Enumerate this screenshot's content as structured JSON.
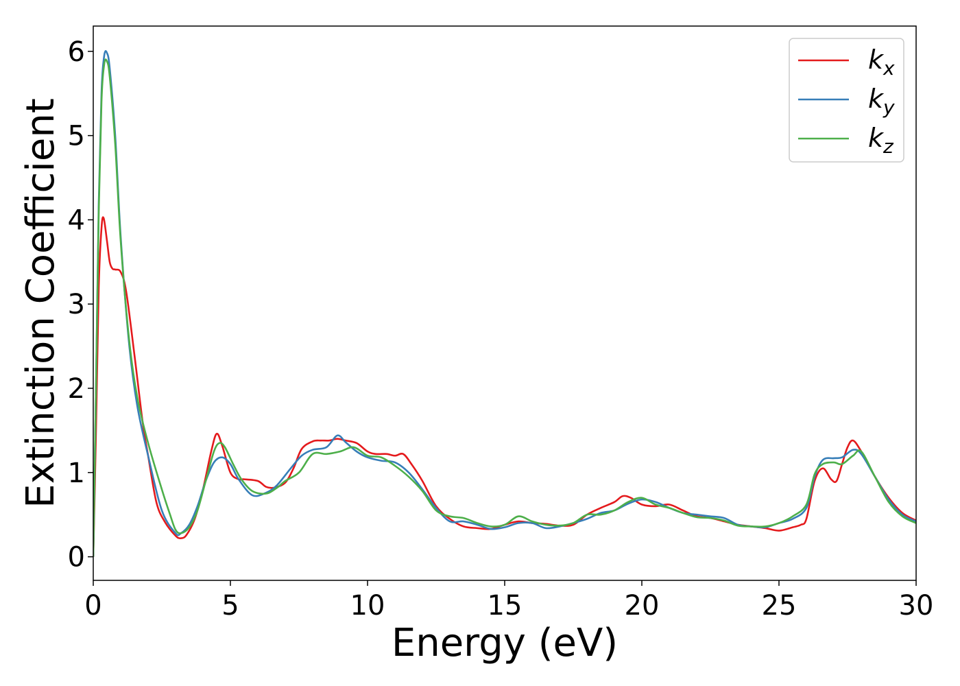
{
  "chart_data": {
    "type": "line",
    "title": "",
    "xlabel": "Energy (eV)",
    "ylabel": "Extinction Coefficient",
    "xlim": [
      0,
      30
    ],
    "ylim": [
      -0.28,
      6.3
    ],
    "xticks": [
      0,
      5,
      10,
      15,
      20,
      25,
      30
    ],
    "yticks": [
      0,
      1,
      2,
      3,
      4,
      5,
      6
    ],
    "grid": false,
    "legend_position": "upper right",
    "series": [
      {
        "name": "k",
        "subscript": "x",
        "color": "#e41a1c",
        "x": [
          0,
          0.1,
          0.2,
          0.3,
          0.38,
          0.5,
          0.6,
          0.7,
          0.8,
          1.0,
          1.2,
          1.5,
          1.8,
          2.0,
          2.3,
          2.6,
          3.0,
          3.2,
          3.4,
          3.7,
          4.0,
          4.3,
          4.5,
          4.7,
          5.0,
          5.3,
          5.5,
          6.0,
          6.3,
          6.6,
          7.0,
          7.3,
          7.6,
          8.0,
          8.3,
          8.6,
          8.9,
          9.2,
          9.6,
          10.0,
          10.3,
          10.7,
          11.0,
          11.3,
          11.6,
          12.0,
          12.5,
          13.0,
          13.5,
          14.0,
          14.5,
          15.0,
          15.5,
          16.0,
          16.5,
          17.0,
          17.5,
          18.0,
          18.5,
          19.0,
          19.3,
          19.6,
          20.0,
          20.5,
          21.0,
          21.5,
          22.0,
          22.5,
          23.0,
          23.5,
          24.0,
          24.5,
          25.0,
          25.5,
          25.8,
          26.0,
          26.3,
          26.6,
          26.9,
          27.1,
          27.3,
          27.5,
          27.7,
          28.0,
          28.5,
          29.0,
          29.5,
          30.0
        ],
        "y": [
          0.0,
          1.5,
          3.2,
          3.9,
          4.02,
          3.75,
          3.5,
          3.42,
          3.41,
          3.38,
          3.15,
          2.4,
          1.6,
          1.2,
          0.65,
          0.42,
          0.25,
          0.22,
          0.26,
          0.45,
          0.8,
          1.25,
          1.46,
          1.32,
          1.0,
          0.92,
          0.92,
          0.9,
          0.83,
          0.82,
          0.88,
          1.05,
          1.28,
          1.37,
          1.38,
          1.38,
          1.4,
          1.38,
          1.35,
          1.25,
          1.22,
          1.22,
          1.2,
          1.22,
          1.1,
          0.9,
          0.6,
          0.45,
          0.36,
          0.34,
          0.33,
          0.38,
          0.42,
          0.4,
          0.39,
          0.37,
          0.38,
          0.5,
          0.58,
          0.65,
          0.72,
          0.7,
          0.62,
          0.6,
          0.62,
          0.55,
          0.48,
          0.46,
          0.42,
          0.38,
          0.36,
          0.34,
          0.31,
          0.35,
          0.38,
          0.45,
          0.9,
          1.05,
          0.92,
          0.9,
          1.1,
          1.3,
          1.38,
          1.25,
          0.95,
          0.7,
          0.52,
          0.43
        ]
      },
      {
        "name": "k",
        "subscript": "y",
        "color": "#377eb8",
        "x": [
          0,
          0.1,
          0.2,
          0.3,
          0.4,
          0.5,
          0.6,
          0.8,
          1.0,
          1.3,
          1.6,
          2.0,
          2.5,
          3.0,
          3.2,
          3.5,
          3.8,
          4.1,
          4.4,
          4.7,
          5.0,
          5.3,
          5.8,
          6.3,
          6.7,
          7.2,
          7.6,
          8.0,
          8.5,
          8.9,
          9.2,
          9.6,
          10.0,
          10.5,
          11.0,
          11.5,
          12.0,
          12.5,
          13.0,
          13.5,
          14.0,
          14.5,
          15.0,
          15.5,
          16.0,
          16.5,
          17.0,
          17.5,
          18.0,
          18.5,
          19.0,
          19.5,
          20.0,
          20.5,
          21.0,
          21.5,
          22.0,
          22.5,
          23.0,
          23.5,
          24.0,
          24.5,
          25.0,
          25.5,
          26.0,
          26.3,
          26.6,
          27.0,
          27.3,
          27.7,
          28.0,
          28.5,
          29.0,
          29.5,
          30.0
        ],
        "y": [
          0.0,
          2.0,
          4.2,
          5.5,
          5.95,
          5.98,
          5.8,
          5.0,
          3.8,
          2.55,
          1.8,
          1.2,
          0.55,
          0.28,
          0.28,
          0.38,
          0.6,
          0.9,
          1.12,
          1.18,
          1.1,
          0.92,
          0.73,
          0.76,
          0.85,
          1.05,
          1.2,
          1.27,
          1.3,
          1.44,
          1.36,
          1.25,
          1.18,
          1.14,
          1.12,
          1.0,
          0.8,
          0.58,
          0.42,
          0.42,
          0.38,
          0.33,
          0.35,
          0.4,
          0.4,
          0.34,
          0.36,
          0.4,
          0.45,
          0.52,
          0.55,
          0.63,
          0.68,
          0.65,
          0.58,
          0.52,
          0.5,
          0.48,
          0.46,
          0.38,
          0.36,
          0.35,
          0.4,
          0.45,
          0.58,
          0.95,
          1.15,
          1.17,
          1.18,
          1.27,
          1.22,
          0.95,
          0.68,
          0.5,
          0.42
        ]
      },
      {
        "name": "k",
        "subscript": "z",
        "color": "#4daf4a",
        "x": [
          0,
          0.1,
          0.2,
          0.3,
          0.4,
          0.5,
          0.6,
          0.8,
          1.0,
          1.3,
          1.6,
          2.0,
          2.5,
          2.8,
          3.0,
          3.2,
          3.5,
          3.8,
          4.1,
          4.4,
          4.6,
          4.8,
          5.1,
          5.4,
          5.8,
          6.3,
          6.7,
          7.0,
          7.5,
          8.0,
          8.5,
          9.0,
          9.5,
          10.0,
          10.5,
          11.0,
          11.5,
          12.0,
          12.5,
          13.0,
          13.5,
          14.0,
          14.5,
          15.0,
          15.5,
          16.0,
          16.5,
          17.0,
          17.5,
          18.0,
          18.5,
          19.0,
          19.5,
          20.0,
          20.5,
          21.0,
          21.5,
          22.0,
          22.5,
          23.0,
          23.5,
          24.0,
          24.5,
          25.0,
          25.5,
          26.0,
          26.3,
          26.6,
          27.0,
          27.3,
          27.7,
          28.0,
          28.5,
          29.0,
          29.5,
          30.0
        ],
        "y": [
          0.0,
          2.0,
          4.1,
          5.4,
          5.85,
          5.88,
          5.7,
          4.9,
          3.75,
          2.6,
          1.9,
          1.35,
          0.8,
          0.5,
          0.32,
          0.28,
          0.35,
          0.55,
          0.9,
          1.25,
          1.35,
          1.3,
          1.1,
          0.92,
          0.78,
          0.75,
          0.82,
          0.9,
          1.0,
          1.22,
          1.22,
          1.25,
          1.3,
          1.2,
          1.18,
          1.08,
          0.95,
          0.78,
          0.55,
          0.48,
          0.46,
          0.4,
          0.36,
          0.38,
          0.48,
          0.42,
          0.38,
          0.37,
          0.4,
          0.5,
          0.5,
          0.55,
          0.65,
          0.7,
          0.62,
          0.58,
          0.52,
          0.47,
          0.46,
          0.43,
          0.37,
          0.36,
          0.36,
          0.4,
          0.48,
          0.62,
          0.98,
          1.1,
          1.12,
          1.1,
          1.2,
          1.25,
          0.95,
          0.65,
          0.48,
          0.4
        ]
      }
    ]
  }
}
